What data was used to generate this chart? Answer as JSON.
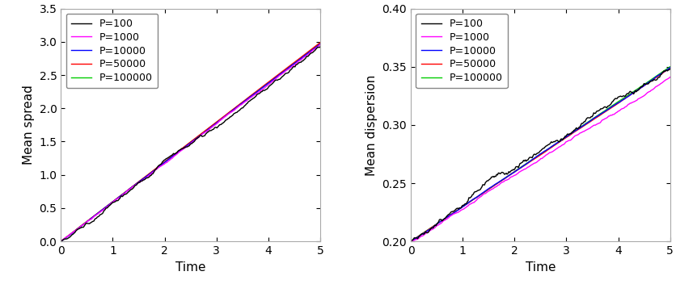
{
  "legend_labels": [
    "P=100",
    "P=1000",
    "P=10000",
    "P=50000",
    "P=100000"
  ],
  "line_colors": [
    "#000000",
    "#ff00ff",
    "#0000ff",
    "#ff0000",
    "#00cc00"
  ],
  "line_widths": [
    1.0,
    1.0,
    1.0,
    1.0,
    1.0
  ],
  "xlim": [
    0,
    5
  ],
  "spread_ylim": [
    0,
    3.5
  ],
  "spread_yticks": [
    0,
    0.5,
    1.0,
    1.5,
    2.0,
    2.5,
    3.0,
    3.5
  ],
  "disp_ylim": [
    0.2,
    0.4
  ],
  "disp_yticks": [
    0.2,
    0.25,
    0.3,
    0.35,
    0.4
  ],
  "xlabel": "Time",
  "ylabel_left": "Mean spread",
  "ylabel_right": "Mean dispersion",
  "n_points": 300,
  "background_color": "#ffffff",
  "tick_fontsize": 10,
  "label_fontsize": 11,
  "legend_fontsize": 9
}
